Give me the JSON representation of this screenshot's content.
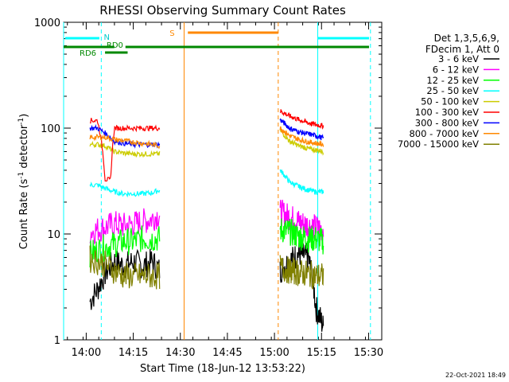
{
  "chart_data": {
    "type": "line",
    "title": "RHESSI Observing Summary Count Rates",
    "xlabel": "Start Time (18-Jun-12 13:53:22)",
    "ylabel_main": "Count Rate (s",
    "ylabel_sup1": "-1",
    "ylabel_mid": " detector",
    "ylabel_sup2": "-1",
    "ylabel_end": ")",
    "ylog": true,
    "ylim": [
      1,
      1000
    ],
    "xlim_minutes": [
      13.88,
      15.57
    ],
    "x_ticks": [
      "14:00",
      "14:15",
      "14:30",
      "14:45",
      "15:00",
      "15:15",
      "15:30"
    ],
    "x_tick_hours": [
      14.0,
      14.25,
      14.5,
      14.75,
      15.0,
      15.25,
      15.5
    ],
    "y_ticks": [
      "1",
      "10",
      "100",
      "1000"
    ],
    "y_tick_values": [
      1,
      10,
      100,
      1000
    ],
    "legend_header": [
      "Det 1,3,5,6,9,",
      "FDecim 1, Att 0"
    ],
    "footer_date": "22-Oct-2021 18:49",
    "flags": {
      "N": "N",
      "S": "S",
      "RD0": "RD0",
      "RD6": "RD6"
    },
    "series": [
      {
        "name": "3 - 6 keV",
        "color": "#000000",
        "seg1": [
          [
            14.02,
            2.3
          ],
          [
            14.06,
            3.0
          ],
          [
            14.1,
            4.2
          ],
          [
            14.15,
            5.5
          ],
          [
            14.2,
            5.0
          ],
          [
            14.25,
            5.5
          ],
          [
            14.3,
            5.0
          ],
          [
            14.35,
            5.5
          ],
          [
            14.39,
            4.5
          ]
        ],
        "seg2": [
          [
            15.03,
            4.5
          ],
          [
            15.08,
            5.5
          ],
          [
            15.13,
            6.5
          ],
          [
            15.18,
            6.0
          ],
          [
            15.22,
            2.0
          ],
          [
            15.26,
            1.3
          ]
        ]
      },
      {
        "name": "6 - 12 keV",
        "color": "#ff00ff",
        "seg1": [
          [
            14.02,
            10.5
          ],
          [
            14.06,
            11.0
          ],
          [
            14.1,
            11.5
          ],
          [
            14.15,
            12.5
          ],
          [
            14.2,
            12.0
          ],
          [
            14.25,
            12.5
          ],
          [
            14.3,
            13.0
          ],
          [
            14.35,
            14.0
          ],
          [
            14.39,
            15.5
          ]
        ],
        "seg2": [
          [
            15.03,
            16.0
          ],
          [
            15.08,
            14.5
          ],
          [
            15.13,
            13.0
          ],
          [
            15.18,
            12.0
          ],
          [
            15.22,
            11.5
          ],
          [
            15.26,
            11.0
          ]
        ]
      },
      {
        "name": "12 - 25 keV",
        "color": "#00ff00",
        "seg1": [
          [
            14.02,
            6.5
          ],
          [
            14.06,
            7.0
          ],
          [
            14.1,
            7.5
          ],
          [
            14.15,
            8.0
          ],
          [
            14.2,
            8.5
          ],
          [
            14.25,
            8.5
          ],
          [
            14.3,
            9.0
          ],
          [
            14.35,
            9.0
          ],
          [
            14.39,
            9.0
          ]
        ],
        "seg2": [
          [
            15.03,
            11.0
          ],
          [
            15.08,
            10.5
          ],
          [
            15.13,
            9.5
          ],
          [
            15.18,
            9.0
          ],
          [
            15.22,
            9.0
          ],
          [
            15.26,
            8.5
          ]
        ]
      },
      {
        "name": "25 - 50 keV",
        "color": "#00ffff",
        "seg1": [
          [
            14.02,
            29.0
          ],
          [
            14.06,
            29.0
          ],
          [
            14.1,
            27.0
          ],
          [
            14.15,
            25.0
          ],
          [
            14.2,
            24.0
          ],
          [
            14.25,
            24.0
          ],
          [
            14.3,
            24.0
          ],
          [
            14.35,
            24.5
          ],
          [
            14.39,
            26.0
          ]
        ],
        "seg2": [
          [
            15.03,
            40.0
          ],
          [
            15.08,
            31.0
          ],
          [
            15.13,
            28.0
          ],
          [
            15.18,
            26.0
          ],
          [
            15.22,
            25.0
          ],
          [
            15.26,
            25.0
          ]
        ]
      },
      {
        "name": "50 - 100 keV",
        "color": "#cccc00",
        "seg1": [
          [
            14.02,
            70.0
          ],
          [
            14.06,
            70.0
          ],
          [
            14.1,
            68.0
          ],
          [
            14.15,
            60.0
          ],
          [
            14.2,
            58.0
          ],
          [
            14.25,
            57.0
          ],
          [
            14.3,
            57.0
          ],
          [
            14.35,
            57.0
          ],
          [
            14.39,
            57.0
          ]
        ],
        "seg2": [
          [
            15.03,
            95.0
          ],
          [
            15.08,
            75.0
          ],
          [
            15.13,
            68.0
          ],
          [
            15.18,
            64.0
          ],
          [
            15.22,
            62.0
          ],
          [
            15.26,
            60.0
          ]
        ]
      },
      {
        "name": "100 - 300 keV",
        "color": "#ff0000",
        "seg1": [
          [
            14.02,
            118.0
          ],
          [
            14.06,
            118.0
          ],
          [
            14.1,
            33.0
          ],
          [
            14.13,
            32.0
          ],
          [
            14.15,
            100.0
          ],
          [
            14.2,
            100.0
          ],
          [
            14.25,
            100.0
          ],
          [
            14.3,
            100.0
          ],
          [
            14.35,
            100.0
          ],
          [
            14.39,
            100.0
          ]
        ],
        "seg2": [
          [
            15.03,
            145.0
          ],
          [
            15.08,
            130.0
          ],
          [
            15.13,
            120.0
          ],
          [
            15.18,
            112.0
          ],
          [
            15.22,
            108.0
          ],
          [
            15.26,
            105.0
          ]
        ]
      },
      {
        "name": "300 - 800 keV",
        "color": "#0000ff",
        "seg1": [
          [
            14.02,
            100.0
          ],
          [
            14.06,
            100.0
          ],
          [
            14.1,
            90.0
          ],
          [
            14.15,
            75.0
          ],
          [
            14.2,
            72.0
          ],
          [
            14.25,
            70.0
          ],
          [
            14.3,
            70.0
          ],
          [
            14.35,
            70.0
          ],
          [
            14.39,
            70.0
          ]
        ],
        "seg2": [
          [
            15.03,
            120.0
          ],
          [
            15.08,
            100.0
          ],
          [
            15.13,
            92.0
          ],
          [
            15.18,
            88.0
          ],
          [
            15.22,
            85.0
          ],
          [
            15.26,
            80.0
          ]
        ]
      },
      {
        "name": "800 - 7000 keV",
        "color": "#ff8800",
        "seg1": [
          [
            14.02,
            82.0
          ],
          [
            14.06,
            82.0
          ],
          [
            14.1,
            82.0
          ],
          [
            14.15,
            78.0
          ],
          [
            14.2,
            76.0
          ],
          [
            14.25,
            74.0
          ],
          [
            14.3,
            72.0
          ],
          [
            14.35,
            70.0
          ],
          [
            14.39,
            68.0
          ]
        ],
        "seg2": [
          [
            15.03,
            100.0
          ],
          [
            15.08,
            85.0
          ],
          [
            15.13,
            78.0
          ],
          [
            15.18,
            74.0
          ],
          [
            15.22,
            72.0
          ],
          [
            15.26,
            70.0
          ]
        ]
      },
      {
        "name": "7000 - 15000 keV",
        "color": "#808000",
        "seg1": [
          [
            14.02,
            5.8
          ],
          [
            14.06,
            5.5
          ],
          [
            14.1,
            5.2
          ],
          [
            14.15,
            4.5
          ],
          [
            14.2,
            4.0
          ],
          [
            14.25,
            4.0
          ],
          [
            14.3,
            4.0
          ],
          [
            14.35,
            4.0
          ],
          [
            14.39,
            4.0
          ]
        ],
        "seg2": [
          [
            15.03,
            4.8
          ],
          [
            15.08,
            4.5
          ],
          [
            15.13,
            4.3
          ],
          [
            15.18,
            4.2
          ],
          [
            15.22,
            4.0
          ],
          [
            15.26,
            4.0
          ]
        ]
      }
    ],
    "vlines": [
      {
        "label": "cyan-solid-1",
        "hour": 13.88,
        "color": "#00ffff",
        "dash": false
      },
      {
        "label": "cyan-dashed-1",
        "hour": 14.08,
        "color": "#00ffff",
        "dash": true
      },
      {
        "label": "orange-solid",
        "hour": 14.52,
        "color": "#ff8800",
        "dash": false
      },
      {
        "label": "orange-dashed",
        "hour": 15.02,
        "color": "#ff8800",
        "dash": true
      },
      {
        "label": "cyan-solid-2",
        "hour": 15.23,
        "color": "#00ffff",
        "dash": false
      },
      {
        "label": "cyan-dashed-2",
        "hour": 15.51,
        "color": "#00ffff",
        "dash": true
      }
    ]
  }
}
